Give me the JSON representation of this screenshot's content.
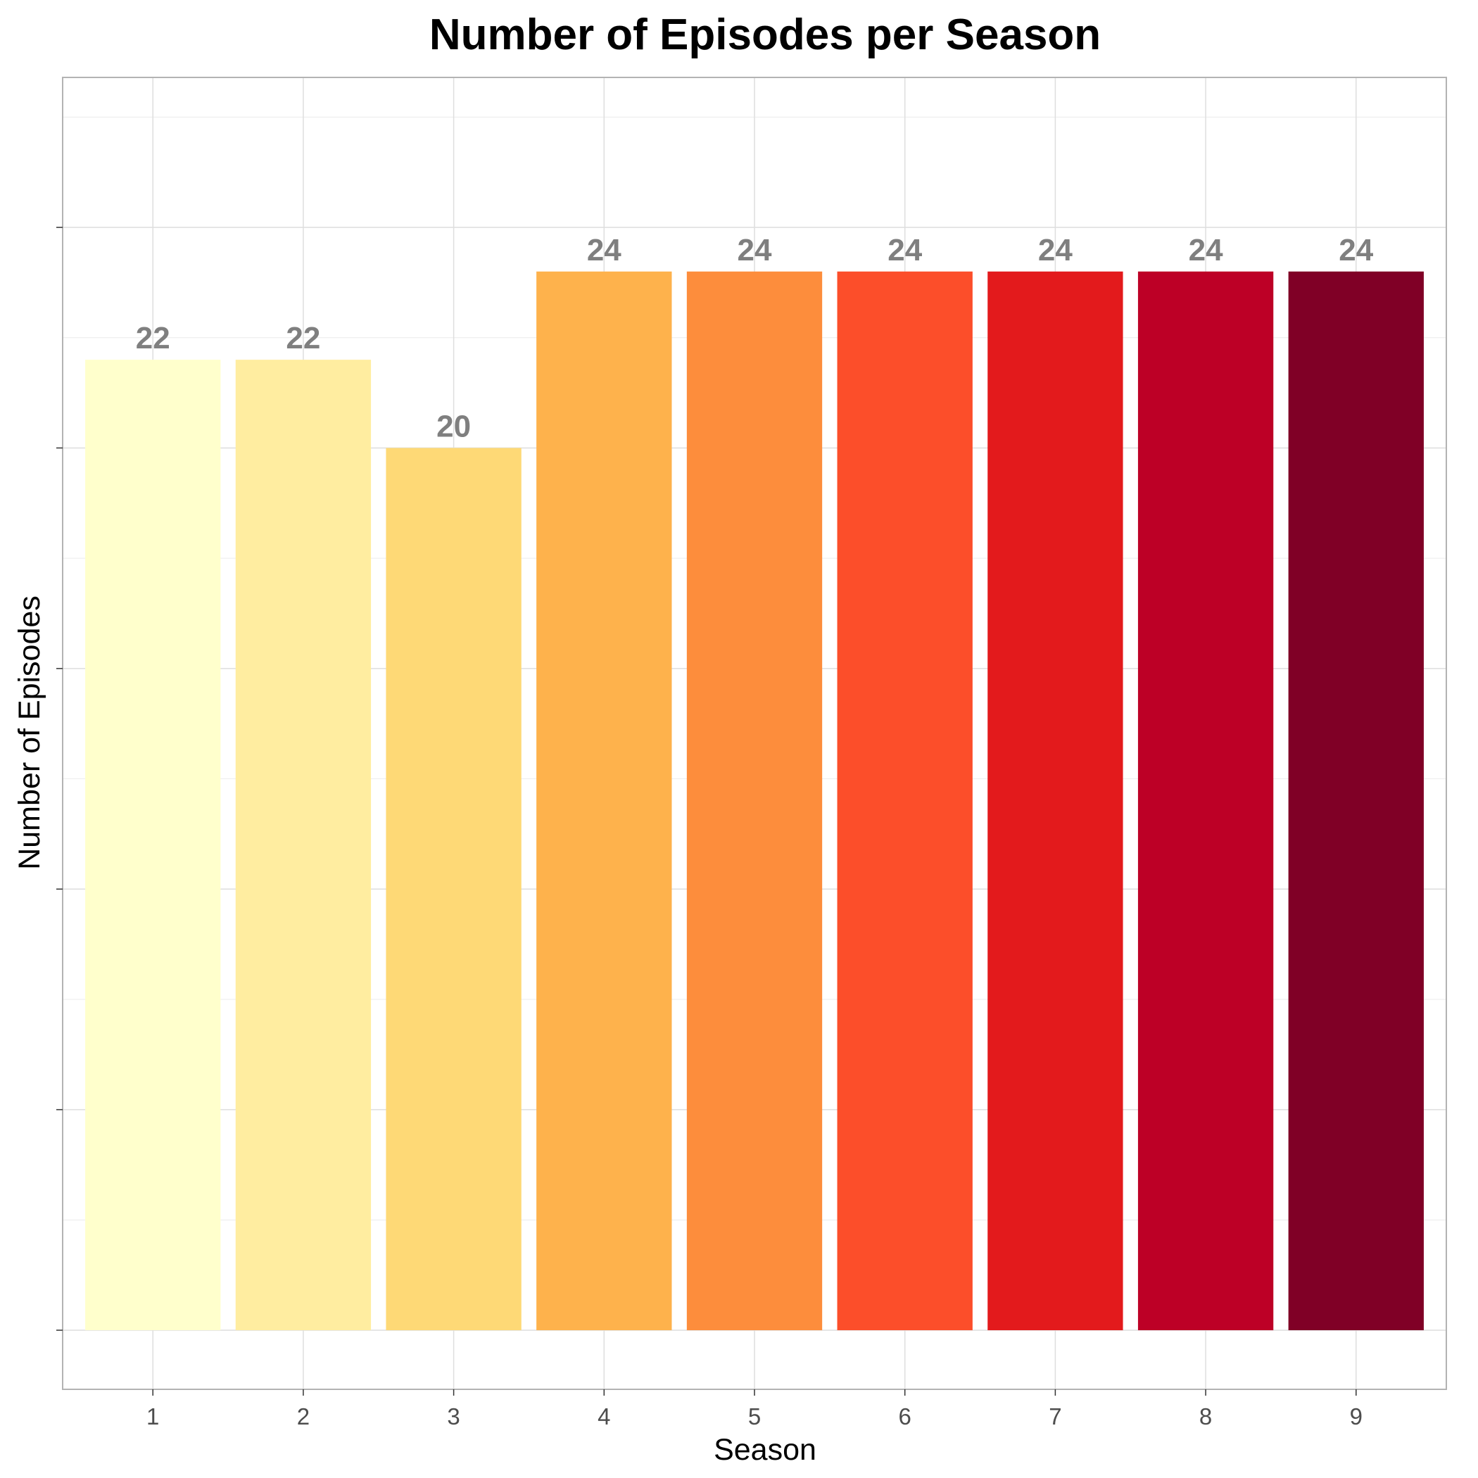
{
  "chart_data": {
    "type": "bar",
    "title": "Number of Episodes per Season",
    "xlabel": "Season",
    "ylabel": "Number of Episodes",
    "categories": [
      "1",
      "2",
      "3",
      "4",
      "5",
      "6",
      "7",
      "8",
      "9"
    ],
    "values": [
      22,
      22,
      20,
      24,
      24,
      24,
      24,
      24,
      24
    ],
    "colors": [
      "#FFFFCC",
      "#FFEDA0",
      "#FED976",
      "#FEB24C",
      "#FD8D3C",
      "#FC4E2A",
      "#E31A1C",
      "#BD0026",
      "#800026"
    ],
    "ylim": [
      -1.34,
      28.4
    ],
    "y_tick_labels_shown": false,
    "grid": true,
    "legend": "none",
    "data_labels": true,
    "colors_meta": {
      "panel_border": "#b3b3b3",
      "grid": "#dedede",
      "data_label": "#7f7f7f",
      "tick_label": "#4d4d4d"
    }
  }
}
